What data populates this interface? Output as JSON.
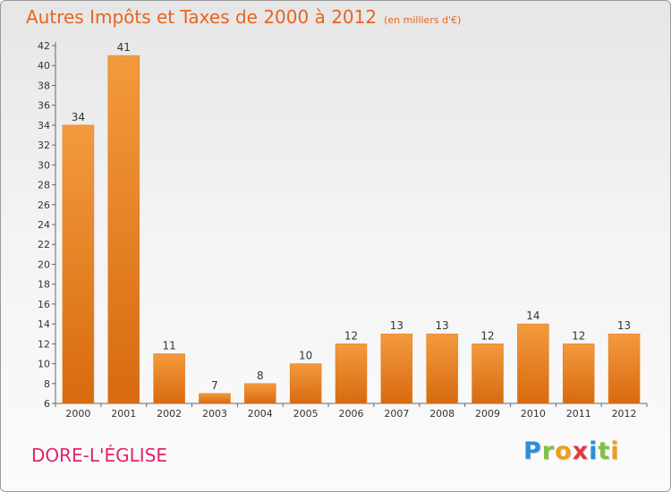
{
  "chart_data": {
    "type": "bar",
    "title": "Autres Impôts et Taxes de 2000 à 2012",
    "subtitle": "(en milliers d'€)",
    "categories": [
      "2000",
      "2001",
      "2002",
      "2003",
      "2004",
      "2005",
      "2006",
      "2007",
      "2008",
      "2009",
      "2010",
      "2011",
      "2012"
    ],
    "values": [
      34,
      41,
      11,
      7,
      8,
      10,
      12,
      13,
      13,
      12,
      14,
      12,
      13
    ],
    "ylim": [
      6,
      42
    ],
    "yticks": [
      6,
      8,
      10,
      12,
      14,
      16,
      18,
      20,
      22,
      24,
      26,
      28,
      30,
      32,
      34,
      36,
      38,
      40,
      42
    ],
    "grid": false,
    "bar_color": "#f39a3d",
    "bar_color_dark": "#d86a10"
  },
  "footer": {
    "town": "DORE-L'ÉGLISE",
    "logo": {
      "letters": [
        "P",
        "r",
        "o",
        "x",
        "i",
        "t",
        "i"
      ],
      "colors": [
        "#2a8fd8",
        "#7cc243",
        "#f29d1c",
        "#e03a3a",
        "#2a8fd8",
        "#7cc243",
        "#f29d1c"
      ]
    }
  }
}
